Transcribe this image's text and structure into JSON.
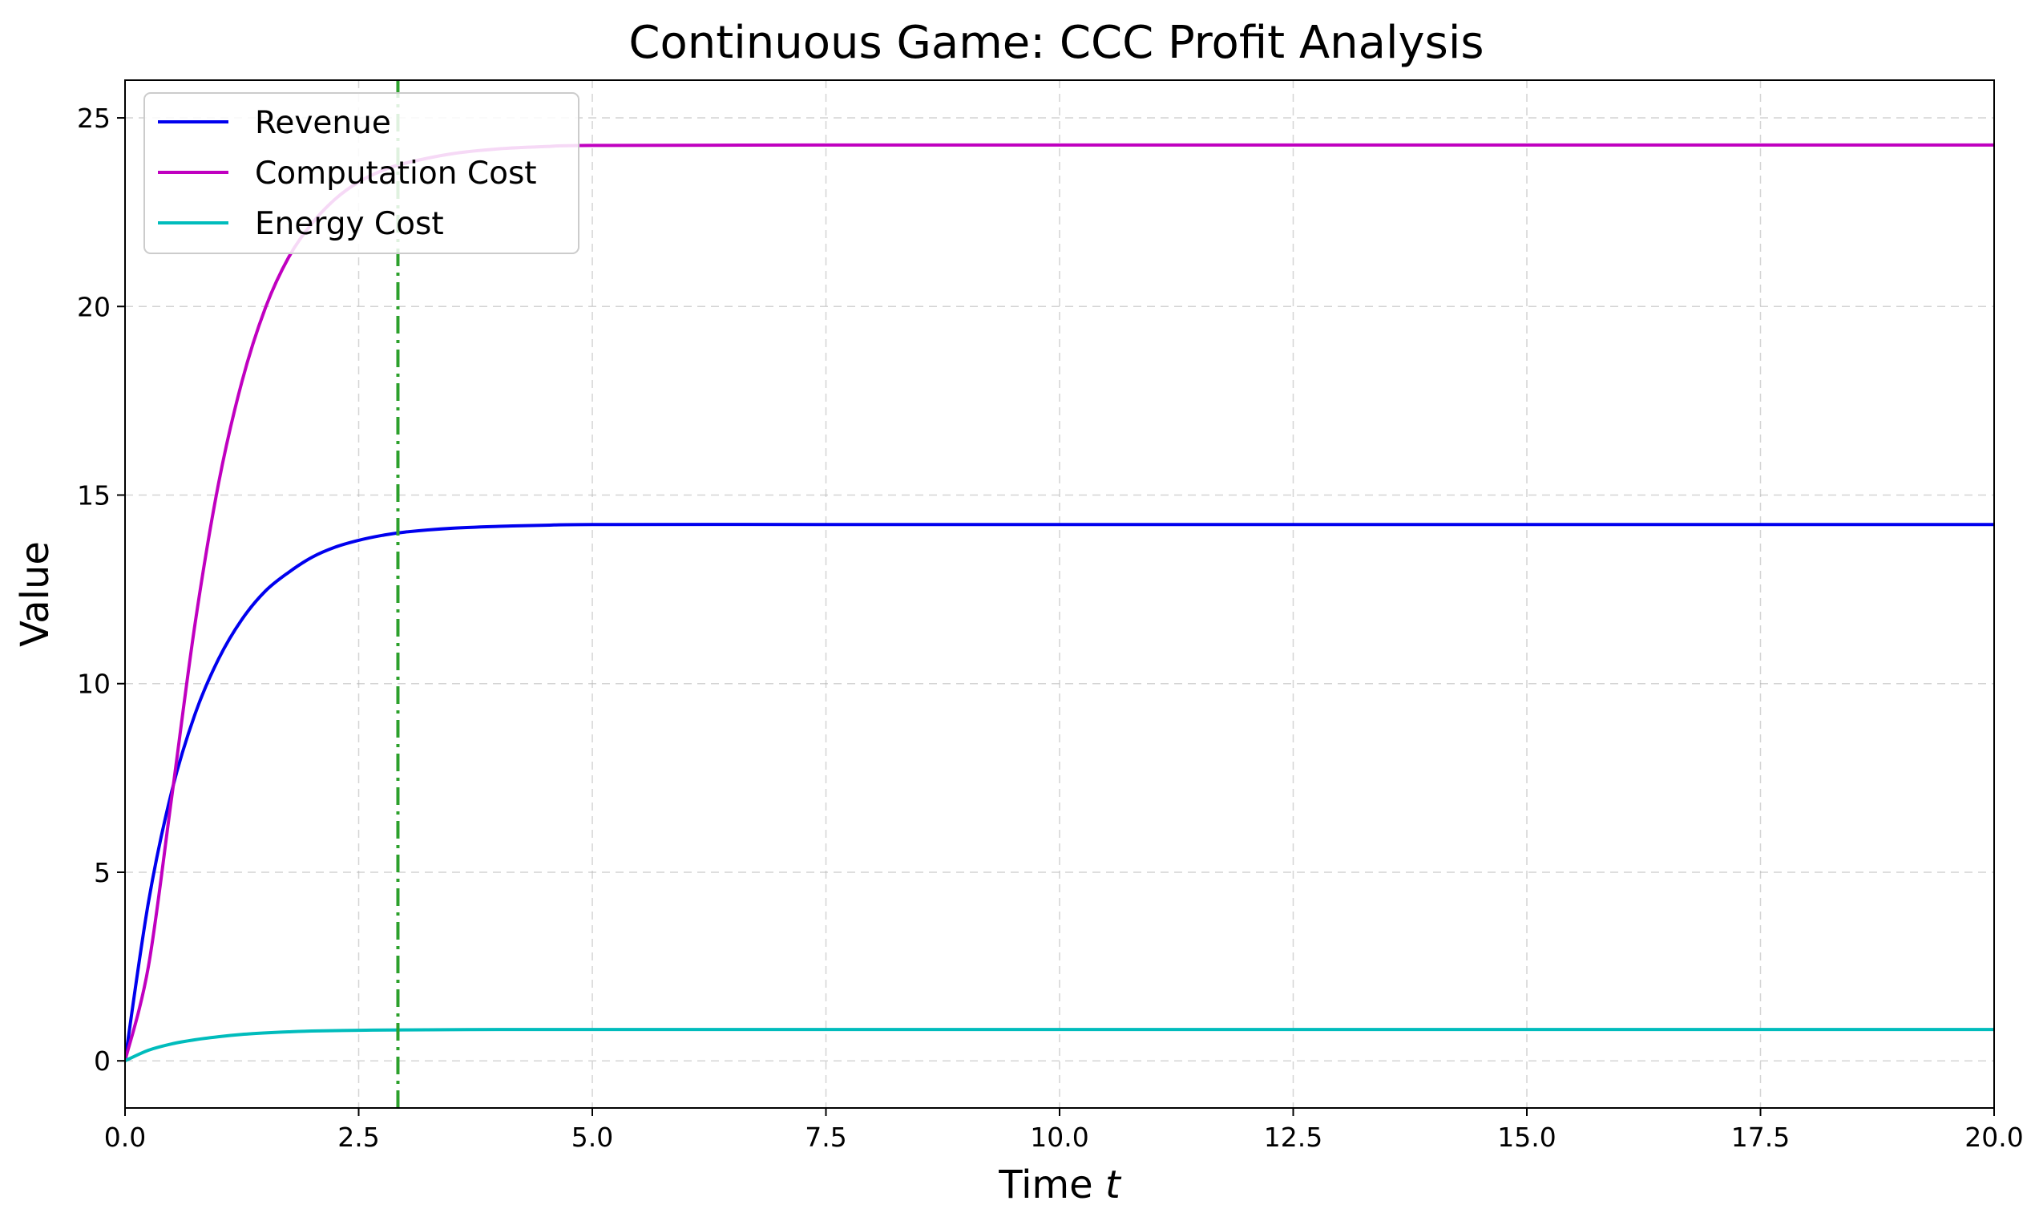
{
  "chart_data": {
    "type": "line",
    "title": "Continuous Game: CCC Profit Analysis",
    "xlabel": "Time",
    "xlabel_var": "t",
    "ylabel": "Value",
    "xlim": [
      0,
      20
    ],
    "ylim": [
      -1.25,
      26.0
    ],
    "xticks": [
      0,
      2.5,
      5,
      7.5,
      10,
      12.5,
      15,
      17.5,
      20
    ],
    "xtick_labels": [
      "0.0",
      "2.5",
      "5.0",
      "7.5",
      "10.0",
      "12.5",
      "15.0",
      "17.5",
      "20.0"
    ],
    "yticks": [
      0,
      5,
      10,
      15,
      20,
      25
    ],
    "ytick_labels": [
      "0",
      "5",
      "10",
      "15",
      "20",
      "25"
    ],
    "grid": true,
    "legend_position": "upper-left",
    "series": [
      {
        "name": "Revenue",
        "color": "#0000ee",
        "x": [
          0,
          0.25,
          0.5,
          0.75,
          1.0,
          1.25,
          1.5,
          1.75,
          2.0,
          2.25,
          2.5,
          2.75,
          3.0,
          3.5,
          4.0,
          4.5,
          5.0,
          7.5,
          10.0,
          12.5,
          15.0,
          17.5,
          20.0
        ],
        "y": [
          0,
          4.2,
          7.15,
          9.2,
          10.65,
          11.7,
          12.45,
          12.95,
          13.35,
          13.62,
          13.8,
          13.93,
          14.02,
          14.12,
          14.17,
          14.2,
          14.22,
          14.22,
          14.22,
          14.22,
          14.22,
          14.22,
          14.22
        ]
      },
      {
        "name": "Computation Cost",
        "color": "#c000c0",
        "x": [
          0,
          0.25,
          0.5,
          0.75,
          1.0,
          1.25,
          1.5,
          1.75,
          2.0,
          2.25,
          2.5,
          2.75,
          3.0,
          3.5,
          4.0,
          4.5,
          5.0,
          7.5,
          10.0,
          12.5,
          15.0,
          17.5,
          20.0
        ],
        "y": [
          0,
          2.5,
          7.0,
          11.6,
          15.3,
          18.0,
          19.95,
          21.3,
          22.2,
          22.85,
          23.3,
          23.6,
          23.8,
          24.05,
          24.18,
          24.24,
          24.27,
          24.28,
          24.28,
          24.28,
          24.28,
          24.28,
          24.28
        ]
      },
      {
        "name": "Energy Cost",
        "color": "#00bcbc",
        "x": [
          0,
          0.25,
          0.5,
          0.75,
          1.0,
          1.25,
          1.5,
          1.75,
          2.0,
          2.5,
          3.0,
          4.0,
          5.0,
          7.5,
          10.0,
          12.5,
          15.0,
          17.5,
          20.0
        ],
        "y": [
          0,
          0.28,
          0.45,
          0.56,
          0.64,
          0.7,
          0.74,
          0.77,
          0.79,
          0.81,
          0.82,
          0.83,
          0.83,
          0.83,
          0.83,
          0.83,
          0.83,
          0.83,
          0.83
        ]
      }
    ],
    "vline": {
      "x": 2.92,
      "color": "#2ca02c",
      "style": "dashdot"
    }
  }
}
